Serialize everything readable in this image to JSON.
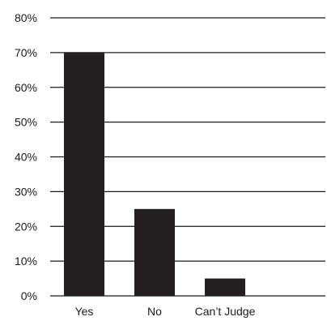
{
  "chart_data": {
    "type": "bar",
    "categories": [
      "Yes",
      "No",
      "Can’t Judge"
    ],
    "values": [
      70,
      25,
      5
    ],
    "ylim": [
      0,
      80
    ],
    "yticks": [
      0,
      10,
      20,
      30,
      40,
      50,
      60,
      70,
      80
    ],
    "ytick_labels": [
      "0%",
      "10%",
      "20%",
      "30%",
      "40%",
      "50%",
      "60%",
      "70%",
      "80%"
    ],
    "title": "",
    "xlabel": "",
    "ylabel": "",
    "grid": true,
    "legend": "none",
    "colors": {
      "bar": "#231f20",
      "grid": "#1a1a1a",
      "text": "#1a1a1a",
      "background": "#ffffff"
    }
  }
}
